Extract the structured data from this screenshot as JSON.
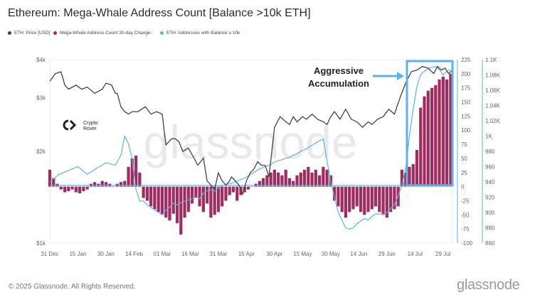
{
  "title": "Ethereum: Mega-Whale Address Count [Balance >10k ETH]",
  "legend": [
    {
      "label": "ETH: Price [USD]",
      "color": "#444444"
    },
    {
      "label": "Mega-Whale Address Count 30-day Change",
      "color": "#a12a5e"
    },
    {
      "label": "ETH: Addresses with Balance ≥ 10k",
      "color": "#5bb4e5"
    }
  ],
  "legend_separator": "-",
  "annotation": {
    "line1": "Aggressive",
    "line2": "Accumulation",
    "box_color": "#5bb4e5"
  },
  "watermark": "glassnode",
  "brand_badge": {
    "line1": "Crypto",
    "line2": "Rover"
  },
  "footer": {
    "copyright": "© 2025 Glassnode. All Rights Reserved.",
    "logo": "glassnode"
  },
  "colors": {
    "price": "#444444",
    "bars": "#a12a5e",
    "addresses": "#5bb4e5",
    "zero_line": "#5bb4e5"
  },
  "chart_data": {
    "type": "line",
    "x_ticks": [
      "31 Dec",
      "15 Jan",
      "30 Jan",
      "14 Feb",
      "01 Mar",
      "16 Mar",
      "31 Mar",
      "15 Apr",
      "30 Apr",
      "15 May",
      "30 May",
      "14 Jun",
      "29 Jun",
      "14 Jul",
      "29 Jul"
    ],
    "x_range": [
      "2024-12-31",
      "2025-08-03"
    ],
    "left_axis": {
      "scale": "log",
      "ticks": [
        "$1k",
        "$2k",
        "$3k",
        "$4k"
      ],
      "tick_values": [
        1000,
        2000,
        3000,
        4000
      ],
      "range": [
        1000,
        4000
      ]
    },
    "right_axis_1": {
      "ticks": [
        "225",
        "200",
        "175",
        "150",
        "125",
        "100",
        "75",
        "50",
        "25",
        "0",
        "-25",
        "-50",
        "-75",
        "-100"
      ],
      "range": [
        -100,
        225
      ]
    },
    "right_axis_2": {
      "ticks": [
        "1.1K",
        "1.08K",
        "1.06K",
        "1.04K",
        "1.02K",
        "1K",
        "980",
        "960",
        "940",
        "920",
        "900",
        "880",
        "860"
      ],
      "range": [
        860,
        1100
      ]
    },
    "series": [
      {
        "name": "ETH: Price [USD]",
        "axis": "left",
        "x_days": [
          0,
          3,
          6,
          8,
          10,
          14,
          17,
          20,
          24,
          28,
          30,
          33,
          35,
          36,
          38,
          40,
          42,
          44,
          47,
          51,
          54,
          57,
          60,
          62,
          65,
          67,
          69,
          71,
          74,
          77,
          79,
          82,
          84,
          86,
          88,
          90,
          92,
          94,
          96,
          97,
          99,
          101,
          103,
          105,
          107,
          109,
          111,
          113,
          115,
          117,
          120,
          123,
          126,
          128,
          130,
          132,
          135,
          137,
          140,
          143,
          146,
          148,
          150,
          152,
          155,
          158,
          161,
          164,
          167,
          170,
          172,
          175,
          178,
          181,
          184,
          187,
          190,
          193,
          196,
          199,
          202,
          205,
          207,
          209,
          211,
          213,
          215
        ],
        "values": [
          3400,
          3600,
          3650,
          3300,
          3200,
          3300,
          3200,
          3250,
          3100,
          3200,
          3350,
          3300,
          3100,
          3100,
          2800,
          2700,
          2650,
          2700,
          2700,
          2800,
          2650,
          2700,
          2650,
          2100,
          2200,
          2200,
          2150,
          2000,
          2050,
          1900,
          1800,
          1900,
          1600,
          1550,
          1500,
          1700,
          1600,
          1550,
          1600,
          1650,
          1600,
          1550,
          1450,
          1600,
          1700,
          1750,
          1850,
          1800,
          1800,
          1650,
          2400,
          2600,
          2500,
          2450,
          2600,
          2500,
          2600,
          2550,
          2650,
          2550,
          2500,
          2450,
          2600,
          2700,
          2550,
          2750,
          2550,
          2500,
          2400,
          2500,
          2450,
          2550,
          2600,
          2750,
          2650,
          3000,
          3350,
          3650,
          3700,
          3800,
          3750,
          3600,
          3800,
          3700,
          3750,
          3600,
          3700
        ]
      },
      {
        "name": "Mega-Whale Address Count 30-day Change",
        "axis": "right_1",
        "type": "bar",
        "x_days": [
          0,
          2,
          4,
          6,
          8,
          10,
          12,
          14,
          16,
          18,
          20,
          22,
          24,
          26,
          28,
          30,
          32,
          34,
          36,
          38,
          40,
          42,
          44,
          46,
          48,
          50,
          52,
          54,
          56,
          58,
          60,
          62,
          64,
          66,
          68,
          70,
          72,
          74,
          76,
          78,
          80,
          82,
          84,
          86,
          88,
          90,
          92,
          94,
          96,
          98,
          100,
          102,
          104,
          106,
          108,
          110,
          112,
          114,
          116,
          118,
          120,
          122,
          124,
          126,
          128,
          130,
          132,
          134,
          136,
          138,
          140,
          142,
          144,
          146,
          148,
          150,
          152,
          154,
          156,
          158,
          160,
          162,
          164,
          166,
          168,
          170,
          172,
          174,
          176,
          178,
          180,
          182,
          184,
          186,
          188,
          190,
          192,
          194,
          196,
          198,
          200,
          202,
          204,
          206,
          208,
          210,
          212,
          214
        ],
        "values": [
          30,
          15,
          5,
          -5,
          -10,
          -8,
          -5,
          -10,
          -12,
          -8,
          -5,
          5,
          8,
          5,
          10,
          8,
          5,
          0,
          5,
          8,
          10,
          35,
          50,
          55,
          25,
          -20,
          -25,
          -35,
          -40,
          -45,
          -50,
          -55,
          -60,
          -48,
          -65,
          -85,
          -55,
          -45,
          -30,
          -20,
          -35,
          -45,
          -30,
          -55,
          -50,
          -45,
          -35,
          -25,
          -15,
          -10,
          -25,
          -15,
          -10,
          -5,
          0,
          5,
          10,
          15,
          20,
          25,
          30,
          25,
          20,
          30,
          15,
          10,
          20,
          25,
          30,
          35,
          25,
          30,
          20,
          35,
          30,
          20,
          -25,
          -35,
          -45,
          -55,
          -45,
          -40,
          -35,
          -45,
          -50,
          -45,
          -40,
          -35,
          -45,
          -50,
          -55,
          -45,
          -40,
          -35,
          30,
          25,
          35,
          40,
          65,
          140,
          160,
          170,
          175,
          180,
          190,
          195,
          190,
          200
        ]
      },
      {
        "name": "ETH: Addresses with Balance ≥ 10k",
        "axis": "right_2",
        "x_days": [
          0,
          5,
          10,
          15,
          20,
          25,
          30,
          35,
          38,
          40,
          42,
          44,
          46,
          48,
          50,
          52,
          55,
          58,
          60,
          62,
          64,
          66,
          68,
          70,
          72,
          75,
          78,
          80,
          82,
          85,
          88,
          90,
          92,
          95,
          98,
          100,
          102,
          104,
          106,
          108,
          110,
          112,
          114,
          116,
          118,
          120,
          122,
          124,
          126,
          128,
          130,
          132,
          134,
          136,
          138,
          140,
          142,
          144,
          146,
          150,
          154,
          158,
          160,
          162,
          164,
          166,
          168,
          170,
          172,
          174,
          176,
          178,
          180,
          182,
          184,
          186,
          188,
          190,
          192,
          194,
          196,
          198,
          200,
          202,
          204,
          206,
          208,
          210,
          212,
          214
        ],
        "values": [
          940,
          950,
          955,
          960,
          950,
          958,
          965,
          962,
          975,
          1000,
          990,
          970,
          930,
          915,
          915,
          910,
          905,
          900,
          897,
          903,
          907,
          912,
          910,
          913,
          915,
          917,
          920,
          918,
          925,
          930,
          928,
          932,
          935,
          937,
          939,
          941,
          943,
          945,
          948,
          951,
          954,
          957,
          959,
          961,
          963,
          966,
          968,
          969,
          971,
          972,
          975,
          977,
          980,
          982,
          985,
          988,
          991,
          994,
          996,
          940,
          900,
          880,
          878,
          880,
          885,
          889,
          892,
          890,
          895,
          898,
          898,
          898,
          900,
          905,
          910,
          922,
          936,
          958,
          1000,
          1035,
          1065,
          1080,
          1085,
          1088,
          1090,
          1091,
          1087,
          1080,
          1085,
          1087
        ]
      }
    ]
  }
}
